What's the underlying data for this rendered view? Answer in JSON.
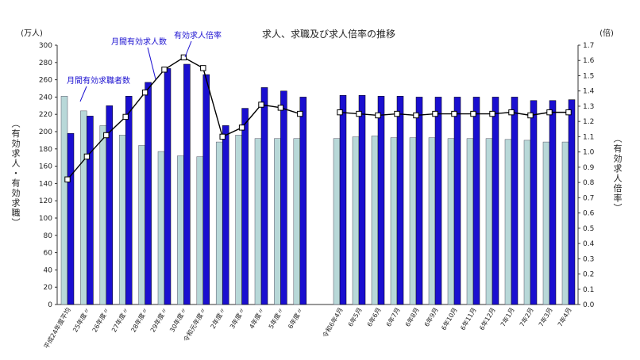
{
  "chart_data": {
    "type": "bar",
    "title": "求人、求職及び求人倍率の推移",
    "left_unit": "(万人)",
    "right_unit": "(倍)",
    "left_axis_label": "(有効求人・有効求職)",
    "right_axis_label": "(有効求人倍率)",
    "left_ylim": [
      0,
      300
    ],
    "left_ticks": [
      "0",
      "20",
      "40",
      "60",
      "80",
      "100",
      "120",
      "140",
      "160",
      "180",
      "200",
      "220",
      "240",
      "260",
      "280",
      "300"
    ],
    "right_ylim": [
      0,
      1.7
    ],
    "right_ticks": [
      "0.0",
      "0.1",
      "0.2",
      "0.3",
      "0.4",
      "0.5",
      "0.6",
      "0.7",
      "0.8",
      "0.9",
      "1.0",
      "1.1",
      "1.2",
      "1.3",
      "1.4",
      "1.5",
      "1.6",
      "1.7"
    ],
    "categories_annual": [
      "平成24年度平均",
      "25年度〃",
      "26年度〃",
      "27年度〃",
      "28年度〃",
      "29年度〃",
      "30年度〃",
      "令和元年度〃",
      "2年度〃",
      "3年度〃",
      "4年度〃",
      "5年度〃",
      "6年度〃"
    ],
    "categories_monthly": [
      "令和6年4月",
      "6年5月",
      "6年6月",
      "6年7月",
      "6年8月",
      "6年9月",
      "6年10月",
      "6年11月",
      "6年12月",
      "7年1月",
      "7年2月",
      "7年3月",
      "7年4月"
    ],
    "series": [
      {
        "name": "月間有効求職者数",
        "axis": "left",
        "color": "#b8d8d8",
        "annual": [
          241,
          224,
          207,
          196,
          184,
          177,
          172,
          171,
          188,
          196,
          192,
          192,
          192
        ],
        "monthly": [
          192,
          194,
          195,
          193,
          193,
          193,
          192,
          192,
          192,
          191,
          190,
          188,
          188
        ]
      },
      {
        "name": "月間有効求人数",
        "axis": "left",
        "color": "#1a0fd0",
        "annual": [
          198,
          218,
          230,
          241,
          257,
          273,
          278,
          266,
          207,
          227,
          251,
          247,
          240
        ],
        "monthly": [
          242,
          242,
          241,
          241,
          240,
          240,
          240,
          240,
          240,
          240,
          236,
          236,
          237
        ]
      },
      {
        "name": "有効求人倍率",
        "axis": "right",
        "type": "line",
        "color": "#000000",
        "annual": [
          0.82,
          0.97,
          1.11,
          1.23,
          1.39,
          1.54,
          1.62,
          1.55,
          1.1,
          1.16,
          1.31,
          1.29,
          1.25
        ],
        "monthly": [
          1.26,
          1.25,
          1.24,
          1.25,
          1.24,
          1.25,
          1.25,
          1.25,
          1.25,
          1.26,
          1.24,
          1.26,
          1.26
        ]
      }
    ],
    "annotations": [
      "月間有効求職者数",
      "月間有効求人数",
      "有効求人倍率"
    ],
    "legend": "annotations-in-plot",
    "grid": false
  }
}
